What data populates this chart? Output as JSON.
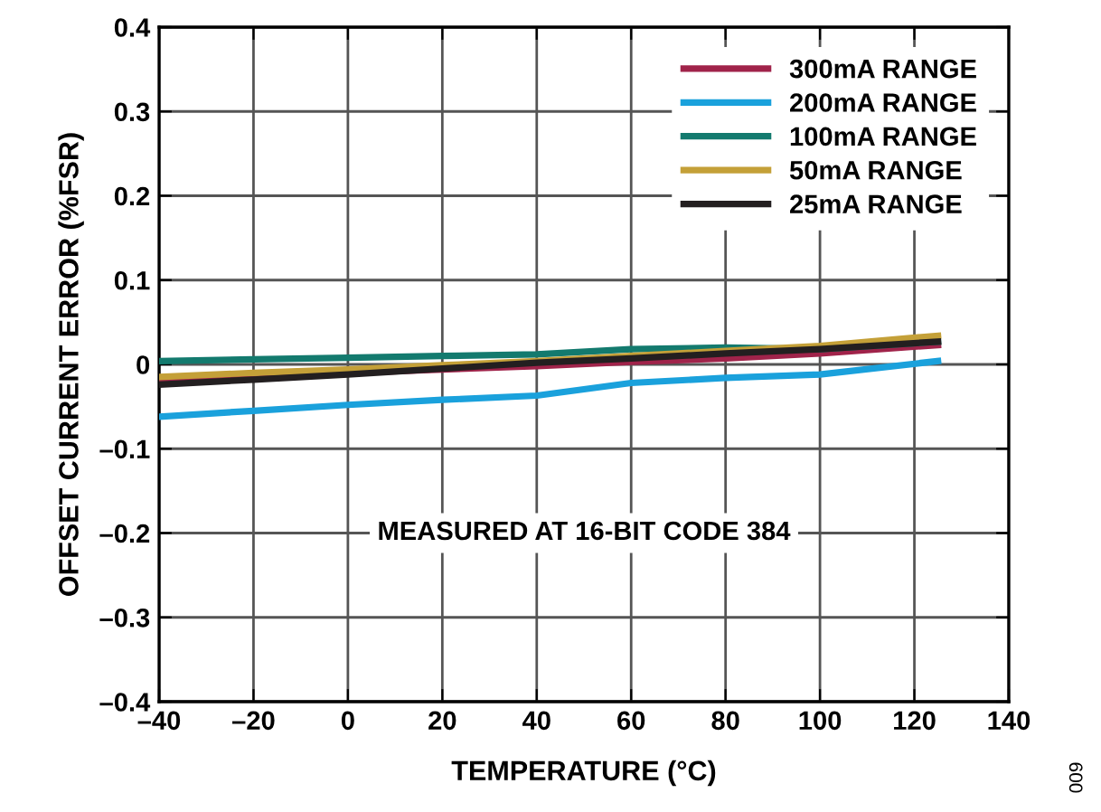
{
  "chart_data": {
    "type": "line",
    "xlabel": "TEMPERATURE (°C)",
    "ylabel": "OFFSET CURRENT ERROR (%FSR)",
    "x": [
      -40,
      -20,
      0,
      20,
      40,
      60,
      80,
      100,
      125
    ],
    "series": [
      {
        "name": "300mA RANGE",
        "color": "#a0234a",
        "values": [
          -0.018,
          -0.014,
          -0.01,
          -0.006,
          -0.002,
          0.003,
          0.007,
          0.013,
          0.023
        ]
      },
      {
        "name": "200mA RANGE",
        "color": "#1aa1dc",
        "values": [
          -0.062,
          -0.055,
          -0.048,
          -0.042,
          -0.037,
          -0.022,
          -0.016,
          -0.012,
          0.004
        ]
      },
      {
        "name": "100mA RANGE",
        "color": "#137a6e",
        "values": [
          0.004,
          0.006,
          0.008,
          0.01,
          0.012,
          0.018,
          0.02,
          0.018,
          0.027
        ]
      },
      {
        "name": "50mA RANGE",
        "color": "#c4a038",
        "values": [
          -0.015,
          -0.01,
          -0.006,
          -0.001,
          0.004,
          0.01,
          0.016,
          0.022,
          0.034
        ]
      },
      {
        "name": "25mA RANGE",
        "color": "#231f20",
        "values": [
          -0.024,
          -0.018,
          -0.012,
          -0.005,
          0.002,
          0.007,
          0.013,
          0.018,
          0.027
        ]
      }
    ],
    "xlim": [
      -40,
      140
    ],
    "xticks": [
      {
        "value": -40,
        "label": "–40"
      },
      {
        "value": -20,
        "label": "–20"
      },
      0,
      20,
      40,
      60,
      80,
      100,
      120,
      140
    ],
    "ylim": [
      -0.4,
      0.4
    ],
    "yticks": [
      {
        "value": -0.4,
        "label": "–0.4"
      },
      {
        "value": -0.3,
        "label": "–0.3"
      },
      {
        "value": -0.2,
        "label": "–0.2"
      },
      {
        "value": -0.1,
        "label": "–0.1"
      },
      {
        "value": 0,
        "label": "0"
      },
      {
        "value": 0.1,
        "label": "0.1"
      },
      {
        "value": 0.2,
        "label": "0.2"
      },
      {
        "value": 0.3,
        "label": "0.3"
      },
      {
        "value": 0.4,
        "label": "0.4"
      }
    ],
    "grid": true,
    "legend": "top right",
    "annotations": [
      "MEASURED AT 16-BIT CODE 384",
      "009"
    ]
  }
}
